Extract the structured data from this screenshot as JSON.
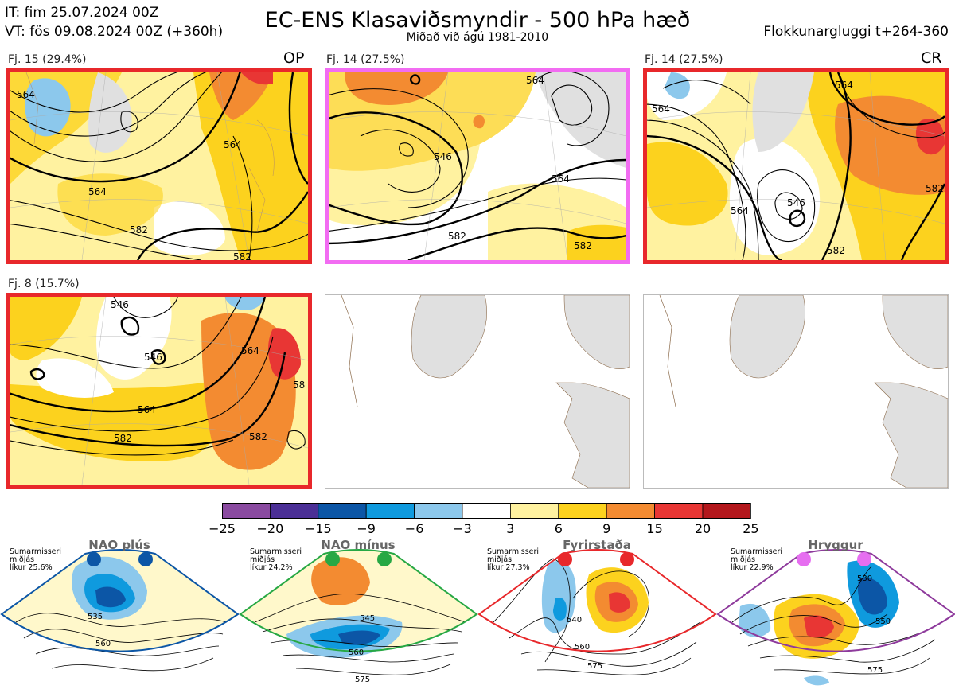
{
  "header": {
    "it_line": "IT: fim 25.07.2024 00Z",
    "vt_line": "VT: fös 09.08.2024 00Z  (+360h)",
    "title": "EC-ENS Klasaviðsmyndir - 500 hPa hæð",
    "subtitle": "Miðað við ágú 1981-2010",
    "window": "Flokkunargluggi t+264-360"
  },
  "panels": [
    {
      "label": "Fj. 15 (29.4%)",
      "tag": "OP",
      "frame": "#e8282b",
      "contours": [
        "564",
        "564",
        "582",
        "582",
        "564"
      ]
    },
    {
      "label": "Fj. 14 (27.5%)",
      "tag": "",
      "frame": "#f26cf2",
      "contours": [
        "546",
        "564",
        "564",
        "582",
        "582"
      ]
    },
    {
      "label": "Fj. 14 (27.5%)",
      "tag": "CR",
      "frame": "#e8282b",
      "contours": [
        "564",
        "564",
        "546",
        "582",
        "582",
        "564"
      ]
    },
    {
      "label": "Fj. 8 (15.7%)",
      "tag": "",
      "frame": "#e8282b",
      "contours": [
        "546",
        "546",
        "564",
        "564",
        "582",
        "582",
        "58"
      ]
    }
  ],
  "colorbar": {
    "colors": [
      "#8a4aa0",
      "#4b2f96",
      "#0c56a6",
      "#0f9ade",
      "#8cc8ec",
      "#ffffff",
      "#fff2a0",
      "#fcd21e",
      "#f38b31",
      "#e83634",
      "#b3171c"
    ],
    "ticks": [
      "−25",
      "−20",
      "−15",
      "−9",
      "−6",
      "−3",
      "3",
      "6",
      "9",
      "15",
      "20",
      "25"
    ]
  },
  "regimes": [
    {
      "name": "NAO plús",
      "info": [
        "Sumarmisseri",
        "miðjás",
        "líkur 25,6%"
      ],
      "frame": "#0c56a6",
      "dots": "#0c56a6",
      "labels": [
        "535",
        "560"
      ]
    },
    {
      "name": "NAO mínus",
      "info": [
        "Sumarmisseri",
        "miðjás",
        "líkur 24,2%"
      ],
      "frame": "#27a844",
      "dots": "#27a844",
      "labels": [
        "545",
        "560",
        "575"
      ]
    },
    {
      "name": "Fyrirstaða",
      "info": [
        "Sumarmisseri",
        "miðjás",
        "líkur 27,3%"
      ],
      "frame": "#e8282b",
      "dots": "#e8282b",
      "labels": [
        "540",
        "560",
        "575"
      ]
    },
    {
      "name": "Hryggur",
      "info": [
        "Sumarmisseri",
        "miðjás",
        "líkur 22,9%"
      ],
      "frame": "#8e3a9c",
      "dots": "#e66ef0",
      "labels": [
        "530",
        "550",
        "575"
      ]
    }
  ],
  "chart_data": {
    "type": "heatmap",
    "title": "EC-ENS Klasaviðsmyndir - 500 hPa hæð",
    "subtitle": "Miðað við ágú 1981-2010",
    "clusters": [
      {
        "label": "Fj. 15 (29.4%)",
        "tag": "OP",
        "contour_labels": [
          564,
          564,
          582,
          582,
          564
        ]
      },
      {
        "label": "Fj. 14 (27.5%)",
        "tag": "",
        "contour_labels": [
          546,
          564,
          564,
          582,
          582
        ]
      },
      {
        "label": "Fj. 14 (27.5%)",
        "tag": "CR",
        "contour_labels": [
          564,
          564,
          546,
          582,
          582,
          564
        ]
      },
      {
        "label": "Fj. 8 (15.7%)",
        "tag": "",
        "contour_labels": [
          546,
          546,
          564,
          564,
          582,
          582,
          58
        ]
      }
    ],
    "colorbar_ticks": [
      -25,
      -20,
      -15,
      -9,
      -6,
      -3,
      3,
      6,
      9,
      15,
      20,
      25
    ],
    "regimes": [
      {
        "name": "NAO plús",
        "probability": "25,6%",
        "contour_labels": [
          535,
          560
        ]
      },
      {
        "name": "NAO mínus",
        "probability": "24,2%",
        "contour_labels": [
          545,
          560,
          575
        ]
      },
      {
        "name": "Fyrirstaða",
        "probability": "27,3%",
        "contour_labels": [
          540,
          560,
          575
        ]
      },
      {
        "name": "Hryggur",
        "probability": "22,9%",
        "contour_labels": [
          530,
          550,
          575
        ]
      }
    ]
  }
}
